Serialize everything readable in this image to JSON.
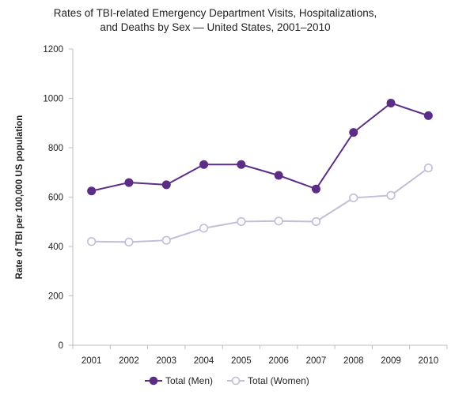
{
  "chart_data": {
    "type": "line",
    "title_lines": [
      "Rates of TBI-related Emergency Department Visits, Hospitalizations,",
      "and Deaths by Sex — United States, 2001–2010"
    ],
    "xlabel": "",
    "ylabel": "Rate of TBI per 100,000 US population",
    "categories": [
      "2001",
      "2002",
      "2003",
      "2004",
      "2005",
      "2006",
      "2007",
      "2008",
      "2009",
      "2010"
    ],
    "ylim": [
      0,
      1200
    ],
    "yticks": [
      "0",
      "200",
      "400",
      "600",
      "800",
      "1000",
      "1200"
    ],
    "grid": false,
    "legend_position": "bottom",
    "series": [
      {
        "name": "Total (Men)",
        "color": "#5b2d86",
        "marker": "filled-circle",
        "values": [
          625,
          659,
          650,
          732,
          732,
          688,
          633,
          862,
          981,
          930
        ]
      },
      {
        "name": "Total (Women)",
        "color": "#c4bcd9",
        "marker": "hollow-circle",
        "values": [
          420,
          418,
          425,
          474,
          501,
          503,
          501,
          597,
          607,
          718
        ]
      }
    ]
  }
}
